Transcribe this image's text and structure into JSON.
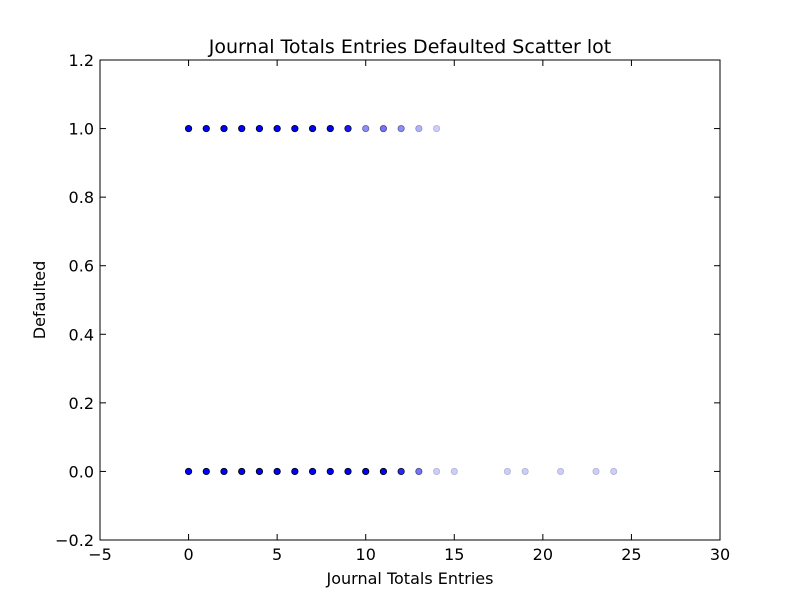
{
  "chart_data": {
    "type": "scatter",
    "title": "Journal Totals Entries Defaulted Scatter lot",
    "xlabel": "Journal Totals Entries",
    "ylabel": "Defaulted",
    "xlim": [
      -5,
      30
    ],
    "ylim": [
      -0.2,
      1.2
    ],
    "xticks": [
      -5,
      0,
      5,
      10,
      15,
      20,
      25,
      30
    ],
    "yticks": [
      -0.2,
      0.0,
      0.2,
      0.4,
      0.6,
      0.8,
      1.0,
      1.2
    ],
    "xtick_labels": [
      "−5",
      "0",
      "5",
      "10",
      "15",
      "20",
      "25",
      "30"
    ],
    "ytick_labels": [
      "−0.2",
      "0.0",
      "0.2",
      "0.4",
      "0.6",
      "0.8",
      "1.0",
      "1.2"
    ],
    "grid": false,
    "marker_color": "#0000ff",
    "series": [
      {
        "points": [
          {
            "x": 0,
            "y": 1,
            "opacity": 1.0
          },
          {
            "x": 1,
            "y": 1,
            "opacity": 1.0
          },
          {
            "x": 2,
            "y": 1,
            "opacity": 1.0
          },
          {
            "x": 3,
            "y": 1,
            "opacity": 1.0
          },
          {
            "x": 4,
            "y": 1,
            "opacity": 1.0
          },
          {
            "x": 5,
            "y": 1,
            "opacity": 1.0
          },
          {
            "x": 6,
            "y": 1,
            "opacity": 1.0
          },
          {
            "x": 7,
            "y": 1,
            "opacity": 1.0
          },
          {
            "x": 8,
            "y": 1,
            "opacity": 1.0
          },
          {
            "x": 9,
            "y": 1,
            "opacity": 0.9
          },
          {
            "x": 10,
            "y": 1,
            "opacity": 0.45
          },
          {
            "x": 11,
            "y": 1,
            "opacity": 0.55
          },
          {
            "x": 12,
            "y": 1,
            "opacity": 0.45
          },
          {
            "x": 13,
            "y": 1,
            "opacity": 0.3
          },
          {
            "x": 14,
            "y": 1,
            "opacity": 0.2
          },
          {
            "x": 0,
            "y": 0,
            "opacity": 1.0
          },
          {
            "x": 1,
            "y": 0,
            "opacity": 1.0
          },
          {
            "x": 2,
            "y": 0,
            "opacity": 1.0
          },
          {
            "x": 3,
            "y": 0,
            "opacity": 1.0
          },
          {
            "x": 4,
            "y": 0,
            "opacity": 1.0
          },
          {
            "x": 5,
            "y": 0,
            "opacity": 1.0
          },
          {
            "x": 6,
            "y": 0,
            "opacity": 1.0
          },
          {
            "x": 7,
            "y": 0,
            "opacity": 1.0
          },
          {
            "x": 8,
            "y": 0,
            "opacity": 1.0
          },
          {
            "x": 9,
            "y": 0,
            "opacity": 1.0
          },
          {
            "x": 10,
            "y": 0,
            "opacity": 1.0
          },
          {
            "x": 11,
            "y": 0,
            "opacity": 1.0
          },
          {
            "x": 12,
            "y": 0,
            "opacity": 0.85
          },
          {
            "x": 13,
            "y": 0,
            "opacity": 0.55
          },
          {
            "x": 14,
            "y": 0,
            "opacity": 0.2
          },
          {
            "x": 15,
            "y": 0,
            "opacity": 0.2
          },
          {
            "x": 18,
            "y": 0,
            "opacity": 0.2
          },
          {
            "x": 19,
            "y": 0,
            "opacity": 0.2
          },
          {
            "x": 21,
            "y": 0,
            "opacity": 0.2
          },
          {
            "x": 23,
            "y": 0,
            "opacity": 0.2
          },
          {
            "x": 24,
            "y": 0,
            "opacity": 0.2
          }
        ]
      }
    ]
  }
}
